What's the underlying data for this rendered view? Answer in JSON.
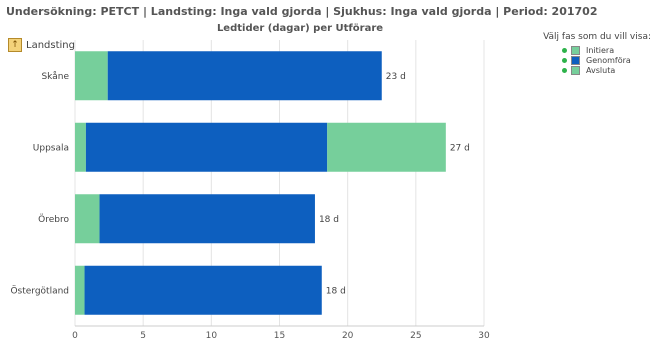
{
  "header": {
    "text": "Undersökning: PETCT  |  Landsting: Inga vald gjorda  |  Sjukhus: Inga vald gjorda  |  Period: 201702"
  },
  "back_label": "Landsting",
  "legend": {
    "title": "Välj fas som du vill visa:",
    "items": [
      {
        "label": "Initiera",
        "color": "#76cf9b"
      },
      {
        "label": "Genomföra",
        "color": "#0d5fbf"
      },
      {
        "label": "Avsluta",
        "color": "#76cf9b"
      }
    ]
  },
  "chart_data": {
    "type": "bar",
    "orientation": "horizontal",
    "stacked": true,
    "title": "Ledtider (dagar) per Utförare",
    "categories": [
      "Skåne",
      "Uppsala",
      "Örebro",
      "Östergötland"
    ],
    "series": [
      {
        "name": "Initiera",
        "color": "#76cf9b",
        "values": [
          2.4,
          0.8,
          1.8,
          0.7
        ]
      },
      {
        "name": "Genomföra",
        "color": "#0d5fbf",
        "values": [
          20.1,
          17.7,
          15.8,
          17.4
        ]
      },
      {
        "name": "Avsluta",
        "color": "#76cf9b",
        "values": [
          0,
          8.7,
          0,
          0
        ]
      }
    ],
    "data_labels": [
      "23 d",
      "27 d",
      "18 d",
      "18 d"
    ],
    "xlim": [
      0,
      30
    ],
    "xticks": [
      0,
      5,
      10,
      15,
      20,
      25,
      30
    ],
    "grid": true,
    "legend_position": "top-right"
  }
}
